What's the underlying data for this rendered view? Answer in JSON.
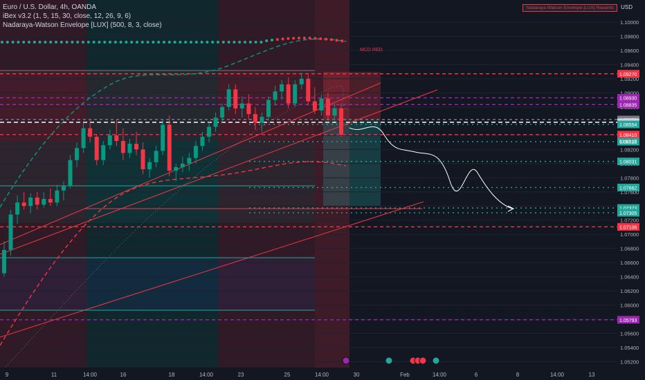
{
  "header": {
    "symbol_line": "Euro / U.S. Dollar, 4h, OANDA",
    "indicator_1": "iBex v3.2 (1, 5, 15, 30, close, 12, 26, 9, 6)",
    "indicator_2": "Nadaraya-Watson Envelope [LUX] (500, 8, 3, close)",
    "alert_badge": "Nadaraya-Watson Envelope [LUX] Repaints",
    "currency": "USD"
  },
  "annotation": "MCD RED",
  "colors": {
    "background": "#131722",
    "up": "#089981",
    "down": "#f23645",
    "teal": "#26a69a",
    "purple": "#9c27b0",
    "green_dot": "#22ab94",
    "red_dot": "#f23645"
  },
  "chart_data": {
    "type": "candlestick",
    "symbol": "EURUSD",
    "timeframe": "4h",
    "ylim": [
      1.051,
      1.1015
    ],
    "y_ticks": [
      1.1,
      1.098,
      1.096,
      1.094,
      1.092,
      1.09,
      1.088,
      1.086,
      1.084,
      1.082,
      1.08,
      1.078,
      1.076,
      1.074,
      1.072,
      1.07,
      1.068,
      1.066,
      1.064,
      1.062,
      1.06,
      1.058,
      1.056,
      1.054,
      1.052
    ],
    "x_ticks": [
      "9",
      "11",
      "14:00",
      "16",
      "18",
      "14:00",
      "23",
      "25",
      "14:00",
      "30",
      "Feb",
      "14:00",
      "6",
      "8",
      "14:00",
      "13"
    ],
    "price_labels": [
      {
        "value": "1.09270",
        "kind": "red"
      },
      {
        "value": "1.08930",
        "kind": "purple"
      },
      {
        "value": "1.08835",
        "kind": "purple"
      },
      {
        "value": "1.08623",
        "kind": "gray"
      },
      {
        "value": "1.08584",
        "kind": "white"
      },
      {
        "value": "1.08554",
        "kind": "teal"
      },
      {
        "value": "1.08410",
        "kind": "red"
      },
      {
        "value": "1.08310",
        "kind": "teal"
      },
      {
        "value": "1.08031",
        "kind": "teal"
      },
      {
        "value": "1.07662",
        "kind": "teal"
      },
      {
        "value": "1.07373",
        "kind": "teal"
      },
      {
        "value": "1.07305",
        "kind": "teal"
      },
      {
        "value": "1.07106",
        "kind": "red"
      },
      {
        "value": "1.05793",
        "kind": "purple"
      }
    ],
    "countdown": "03:07:27",
    "candles": [
      [
        1.0645,
        1.069,
        1.064,
        1.0678
      ],
      [
        1.0678,
        1.0735,
        1.067,
        1.0728
      ],
      [
        1.0728,
        1.0755,
        1.0715,
        1.0745
      ],
      [
        1.0745,
        1.076,
        1.0735,
        1.074
      ],
      [
        1.074,
        1.0758,
        1.073,
        1.0752
      ],
      [
        1.0752,
        1.076,
        1.0735,
        1.0742
      ],
      [
        1.0742,
        1.076,
        1.0738,
        1.075
      ],
      [
        1.075,
        1.0765,
        1.074,
        1.0745
      ],
      [
        1.0745,
        1.077,
        1.074,
        1.0762
      ],
      [
        1.0762,
        1.0775,
        1.0748,
        1.0768
      ],
      [
        1.0768,
        1.0812,
        1.0765,
        1.0805
      ],
      [
        1.0805,
        1.083,
        1.0795,
        1.0822
      ],
      [
        1.0822,
        1.0858,
        1.0815,
        1.085
      ],
      [
        1.085,
        1.0862,
        1.083,
        1.0838
      ],
      [
        1.0838,
        1.0842,
        1.0798,
        1.0805
      ],
      [
        1.0805,
        1.0832,
        1.0798,
        1.0826
      ],
      [
        1.0826,
        1.0848,
        1.082,
        1.084
      ],
      [
        1.084,
        1.0862,
        1.0825,
        1.0832
      ],
      [
        1.0832,
        1.085,
        1.0805,
        1.0815
      ],
      [
        1.0815,
        1.0835,
        1.0808,
        1.0828
      ],
      [
        1.0828,
        1.0845,
        1.0812,
        1.082
      ],
      [
        1.082,
        1.083,
        1.0785,
        1.0792
      ],
      [
        1.0792,
        1.0808,
        1.078,
        1.0802
      ],
      [
        1.0802,
        1.0825,
        1.0795,
        1.0818
      ],
      [
        1.0818,
        1.0862,
        1.0812,
        1.0855
      ],
      [
        1.0855,
        1.0868,
        1.0782,
        1.079
      ],
      [
        1.079,
        1.08,
        1.0775,
        1.0795
      ],
      [
        1.0795,
        1.081,
        1.0788,
        1.08
      ],
      [
        1.08,
        1.0815,
        1.079,
        1.0808
      ],
      [
        1.0808,
        1.0832,
        1.08,
        1.0825
      ],
      [
        1.0825,
        1.0845,
        1.0818,
        1.0838
      ],
      [
        1.0838,
        1.086,
        1.083,
        1.0852
      ],
      [
        1.0852,
        1.0872,
        1.0845,
        1.0865
      ],
      [
        1.0865,
        1.0885,
        1.0858,
        1.088
      ],
      [
        1.088,
        1.0912,
        1.0875,
        1.0905
      ],
      [
        1.0905,
        1.0912,
        1.087,
        1.0878
      ],
      [
        1.0878,
        1.0895,
        1.0865,
        1.0885
      ],
      [
        1.0885,
        1.0898,
        1.0862,
        1.087
      ],
      [
        1.087,
        1.088,
        1.0848,
        1.0858
      ],
      [
        1.0858,
        1.0872,
        1.0845,
        1.0866
      ],
      [
        1.0866,
        1.0895,
        1.086,
        1.089
      ],
      [
        1.089,
        1.091,
        1.0882,
        1.0902
      ],
      [
        1.0902,
        1.0918,
        1.089,
        1.0912
      ],
      [
        1.0912,
        1.0922,
        1.0878,
        1.0885
      ],
      [
        1.0885,
        1.0918,
        1.088,
        1.0912
      ],
      [
        1.0912,
        1.0928,
        1.0905,
        1.092
      ],
      [
        1.092,
        1.0926,
        1.0882,
        1.0888
      ],
      [
        1.0888,
        1.0908,
        1.087,
        1.0875
      ],
      [
        1.0875,
        1.0898,
        1.0868,
        1.0892
      ],
      [
        1.0892,
        1.09,
        1.0862,
        1.0868
      ],
      [
        1.0868,
        1.0885,
        1.086,
        1.0878
      ],
      [
        1.0878,
        1.0885,
        1.0838,
        1.0841
      ]
    ],
    "projection_path": [
      [
        1.0855,
        0
      ],
      [
        1.0838,
        4
      ],
      [
        1.0845,
        10
      ],
      [
        1.0818,
        16
      ],
      [
        1.081,
        20
      ],
      [
        1.0775,
        26
      ],
      [
        1.0785,
        32
      ],
      [
        1.074,
        40
      ]
    ]
  }
}
